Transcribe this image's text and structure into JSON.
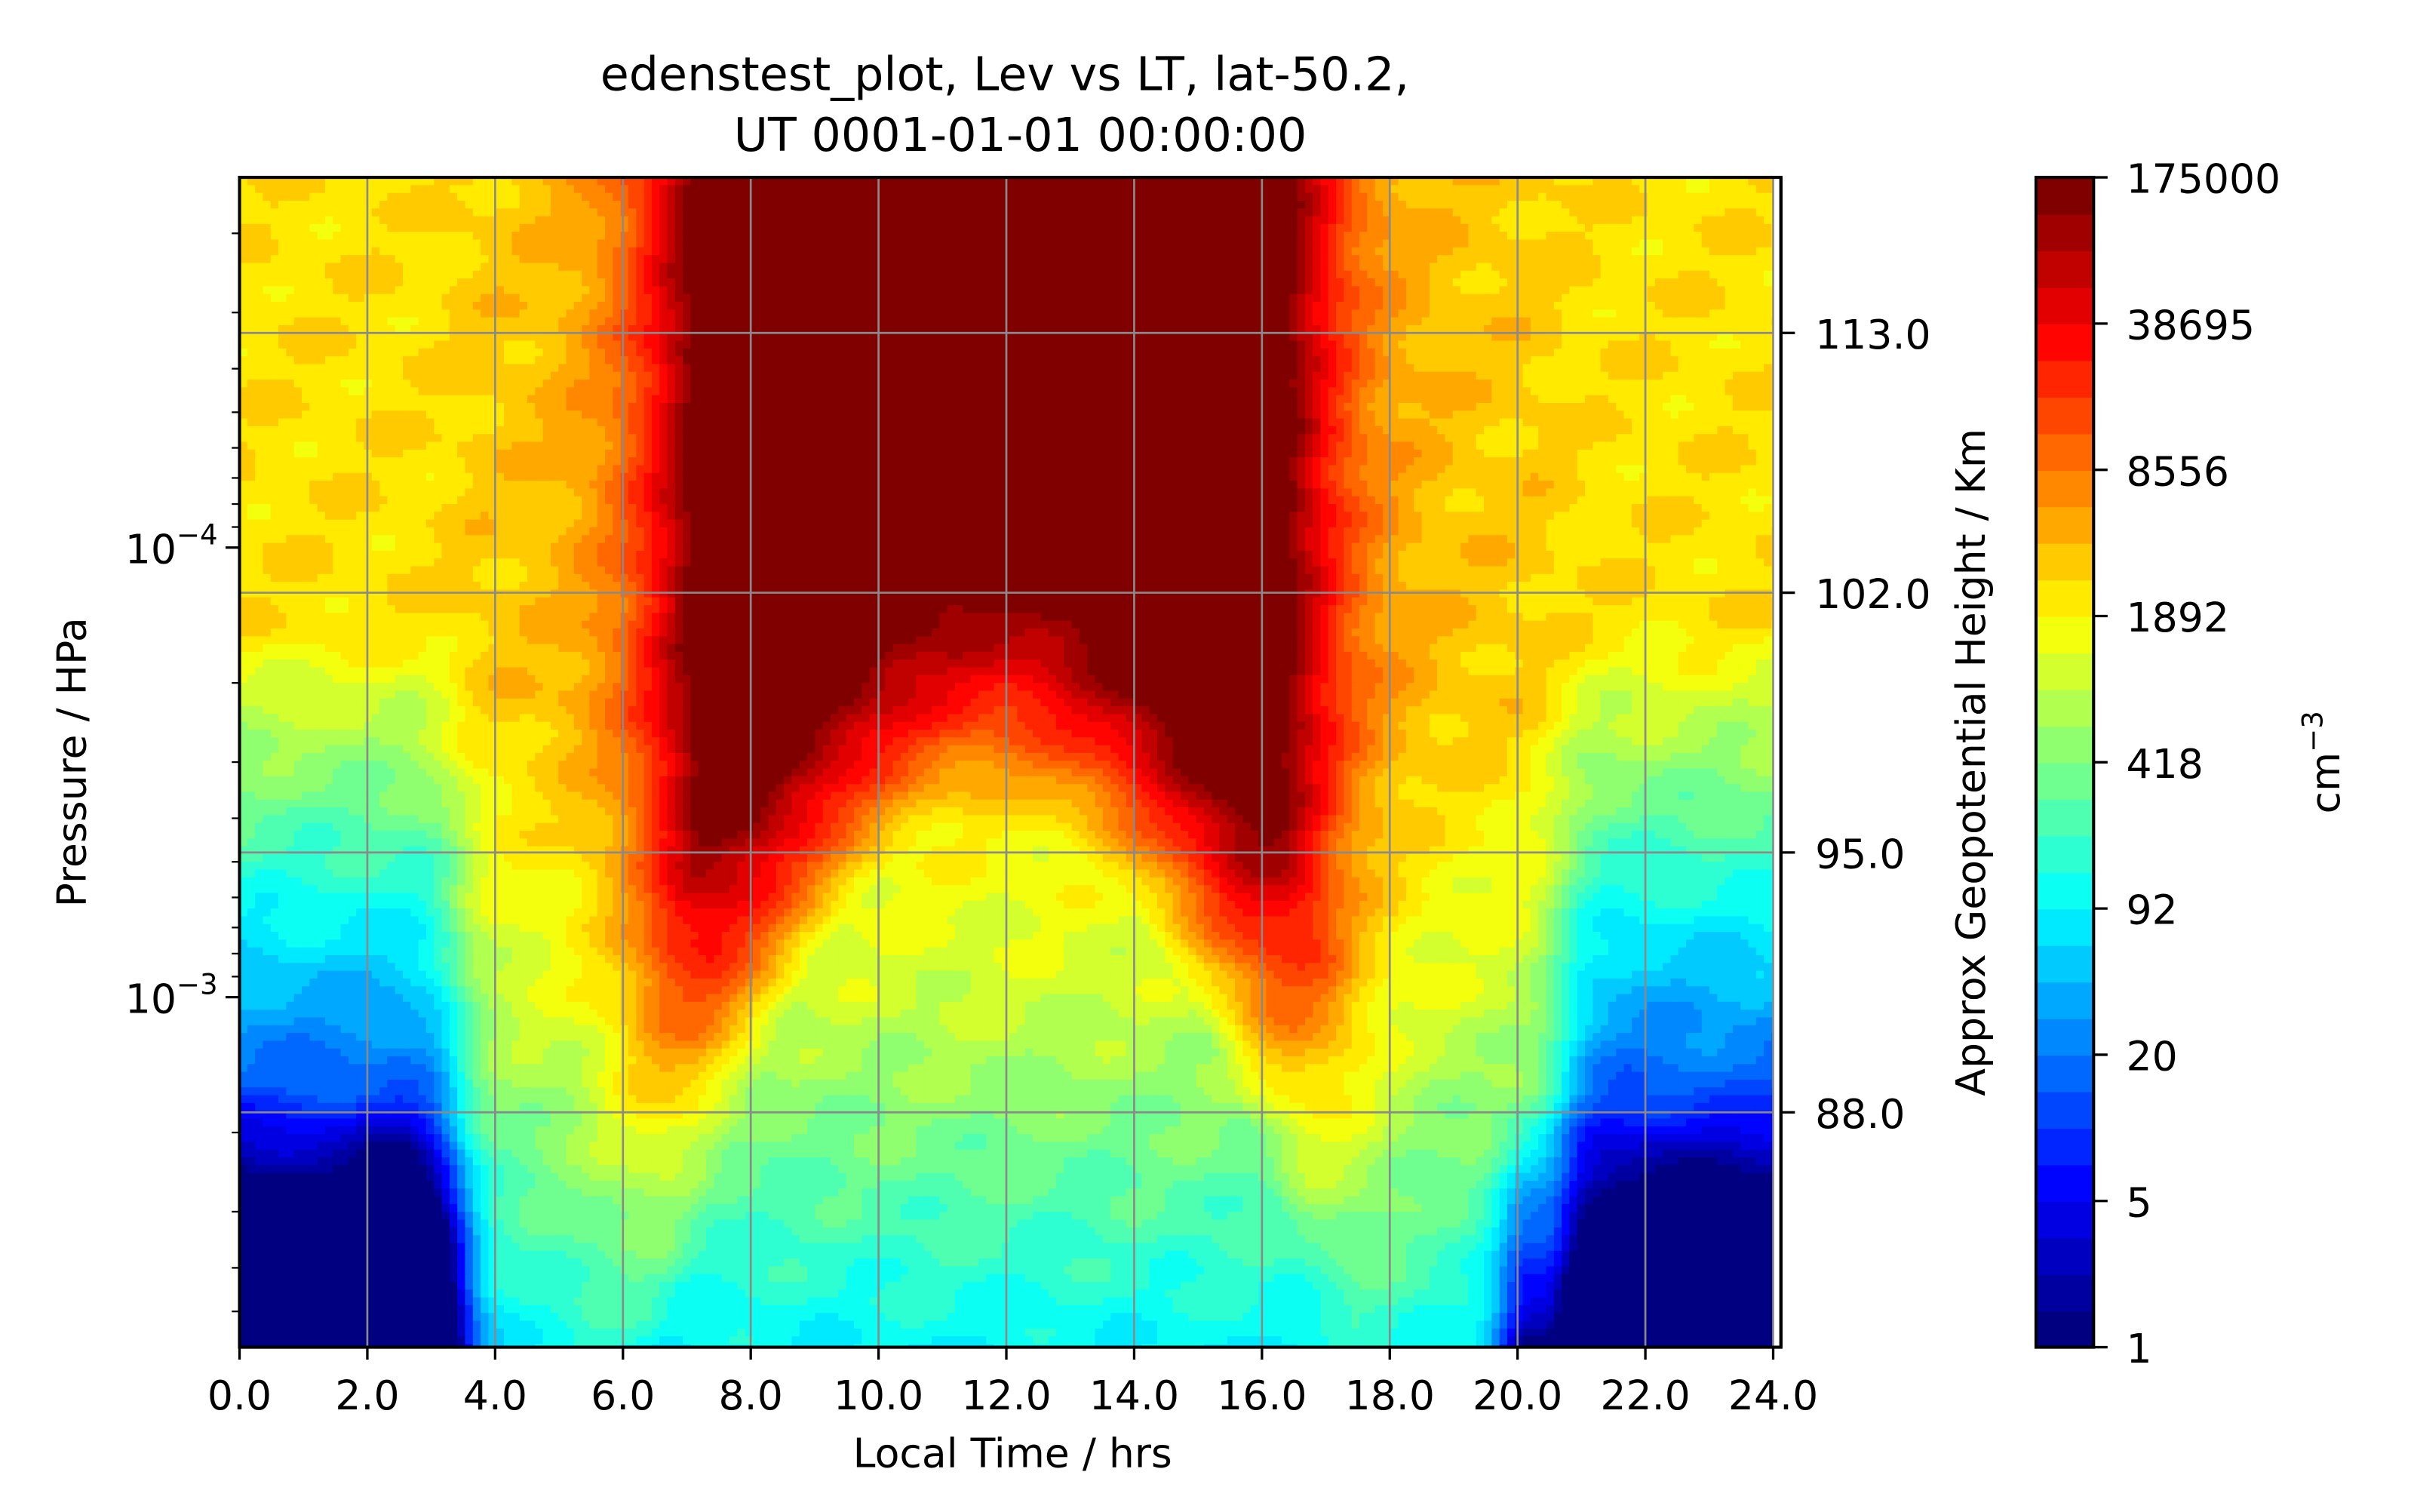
{
  "chart_data": {
    "type": "contour",
    "title_line1": "edenstest_plot, Lev vs LT, lat-50.2,",
    "title_line2": "UT 0001-01-01 00:00:00",
    "xlabel": "Local Time / hrs",
    "ylabel": "Pressure / HPa",
    "y2label": "Approx Geopotential Height / Km",
    "colorbar_label": "cm",
    "colorbar_label_exponent": "−3",
    "xlim": [
      0,
      24
    ],
    "x_ticks": [
      "0.0",
      "2.0",
      "4.0",
      "6.0",
      "8.0",
      "10.0",
      "12.0",
      "14.0",
      "16.0",
      "18.0",
      "20.0",
      "22.0",
      "24.0"
    ],
    "y_scale": "log",
    "y_major_ticks": [
      {
        "value": 0.0001,
        "base": "10",
        "exponent": "−4"
      },
      {
        "value": 0.001,
        "base": "10",
        "exponent": "−3"
      }
    ],
    "height_ticks": [
      "113.0",
      "102.0",
      "95.0",
      "88.0"
    ],
    "colorbar_scale": "log",
    "colorbar_range": [
      1,
      175000
    ],
    "colorbar_ticks": [
      "175000",
      "38695",
      "8556",
      "1892",
      "418",
      "92",
      "20",
      "5",
      "1"
    ],
    "colormap": "jet",
    "grid": true,
    "summary": {
      "max_region": {
        "local_time": [
          8,
          16
        ],
        "value": 175000
      },
      "min_regions": [
        {
          "local_time": [
            1.5,
            3
          ],
          "value": 5
        },
        {
          "local_time": [
            19.5,
            20.5
          ],
          "value": 5
        }
      ]
    }
  }
}
